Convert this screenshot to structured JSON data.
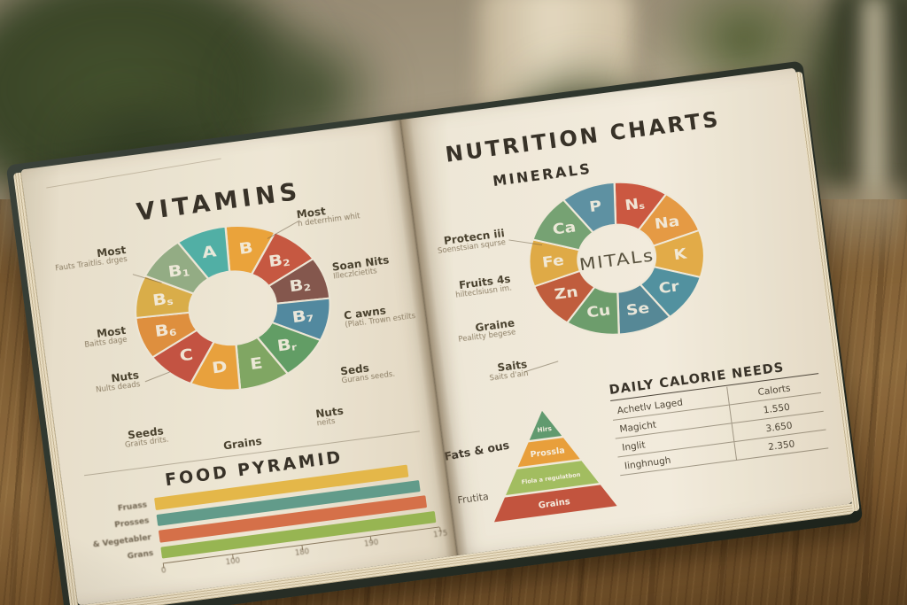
{
  "right_page": {
    "title": "NUTRITION CHARTS"
  },
  "palette": {
    "page": "#F2ECDE",
    "cover": "#242C26",
    "wood": "#7B5A32",
    "plant_green": "#3C4A2C",
    "pot_terracotta": "#8A4E2C"
  },
  "chart_data": [
    {
      "id": "vitamins-donut",
      "type": "pie",
      "title": "VITAMINS",
      "donut": true,
      "legend_position": "around",
      "segments": [
        {
          "label": "B",
          "sub": "",
          "value": 1,
          "color": "#EFA63C"
        },
        {
          "label": "B",
          "sub": "2",
          "value": 1,
          "color": "#C95742"
        },
        {
          "label": "B",
          "sub": "2",
          "value": 1,
          "color": "#83564E"
        },
        {
          "label": "B",
          "sub": "7",
          "value": 1,
          "color": "#4F8BA5"
        },
        {
          "label": "B",
          "sub": "r",
          "value": 1,
          "color": "#5FA068"
        },
        {
          "label": "E",
          "sub": "",
          "value": 1,
          "color": "#7FA966"
        },
        {
          "label": "D",
          "sub": "",
          "value": 1,
          "color": "#EDA43E"
        },
        {
          "label": "C",
          "sub": "",
          "value": 1,
          "color": "#C65243"
        },
        {
          "label": "B",
          "sub": "6",
          "value": 1,
          "color": "#E2913F"
        },
        {
          "label": "B",
          "sub": "s",
          "value": 1,
          "color": "#DDB04A"
        },
        {
          "label": "B",
          "sub": "1",
          "value": 1,
          "color": "#93AF88"
        },
        {
          "label": "A",
          "sub": "",
          "value": 1,
          "color": "#4DB3AB"
        }
      ],
      "callouts": [
        {
          "text": "Most",
          "sub": "Fauts Traitlis. drges"
        },
        {
          "text": "Most",
          "sub": "Baitts dage"
        },
        {
          "text": "Nuts",
          "sub": "Nults deads"
        },
        {
          "text": "Seeds",
          "sub": "Graits drits."
        },
        {
          "text": "Grains",
          "sub": ""
        },
        {
          "text": "Most",
          "sub": "n deterrhim whit"
        },
        {
          "text": "Soan Nits",
          "sub": "Illeczlcietits"
        },
        {
          "text": "C awns",
          "sub": "(Plati. Trown estilts"
        },
        {
          "text": "Seds",
          "sub": "Gurans seeds."
        },
        {
          "text": "Nuts",
          "sub": "neits"
        }
      ]
    },
    {
      "id": "minerals-donut",
      "type": "pie",
      "title": "MINERALS",
      "donut": true,
      "center_label": "MITALs",
      "segments": [
        {
          "label": "N",
          "sub": "s",
          "value": 1,
          "color": "#CE5742"
        },
        {
          "label": "Na",
          "sub": "",
          "value": 1,
          "color": "#E99C45"
        },
        {
          "label": "K",
          "sub": "",
          "value": 1,
          "color": "#E6AE49"
        },
        {
          "label": "Cr",
          "sub": "",
          "value": 1,
          "color": "#4F93A5"
        },
        {
          "label": "Se",
          "sub": "",
          "value": 1,
          "color": "#53899B"
        },
        {
          "label": "Cu",
          "sub": "",
          "value": 1,
          "color": "#6BA06F"
        },
        {
          "label": "Zn",
          "sub": "",
          "value": 1,
          "color": "#C25C3E"
        },
        {
          "label": "Fe",
          "sub": "",
          "value": 1,
          "color": "#E3AD47"
        },
        {
          "label": "Ca",
          "sub": "",
          "value": 1,
          "color": "#74A577"
        },
        {
          "label": "P",
          "sub": "",
          "value": 1,
          "color": "#5B93A8"
        }
      ],
      "callouts": [
        {
          "text": "Protecn iii",
          "sub": "Soenstsian squrse"
        },
        {
          "text": "Fruits 4s",
          "sub": "hilteclsiusn im."
        },
        {
          "text": "Graine",
          "sub": "Pealitty begese"
        },
        {
          "text": "Saits",
          "sub": "Saits d'ain"
        }
      ]
    },
    {
      "id": "food-pyramid-bars",
      "type": "bar",
      "title": "FOOD PYRAMID",
      "orientation": "horizontal",
      "categories": [
        "Fruass",
        "Prosses",
        "& Vegetabler",
        "Grans"
      ],
      "values": [
        160,
        166,
        169,
        173
      ],
      "colors": [
        "#E8BB4A",
        "#5F9E8F",
        "#D9704A",
        "#97B954"
      ],
      "xticks": [
        "0",
        "100",
        "180",
        "190",
        "175"
      ],
      "xlim": [
        0,
        175
      ],
      "grid": false
    },
    {
      "id": "food-guide-pyramid",
      "type": "pyramid",
      "layers": [
        {
          "label": "Hirs",
          "color": "#5E9C72"
        },
        {
          "label": "Prossla",
          "color": "#ECA23B"
        },
        {
          "label": "Flola a regulatbon",
          "color": "#A3C163"
        },
        {
          "label": "Grains",
          "color": "#C4533F"
        }
      ],
      "side_labels": [
        "Fats & ous",
        "Frutita"
      ]
    },
    {
      "id": "calorie-table",
      "type": "table",
      "title": "DAILY CALORIE NEEDS",
      "columns": [
        "Achetlv Laged",
        "Calorts"
      ],
      "rows": [
        [
          "Magicht",
          "1.550"
        ],
        [
          "Inglit",
          "3.650"
        ],
        [
          "Iinghnugh",
          "2.350"
        ]
      ]
    }
  ]
}
